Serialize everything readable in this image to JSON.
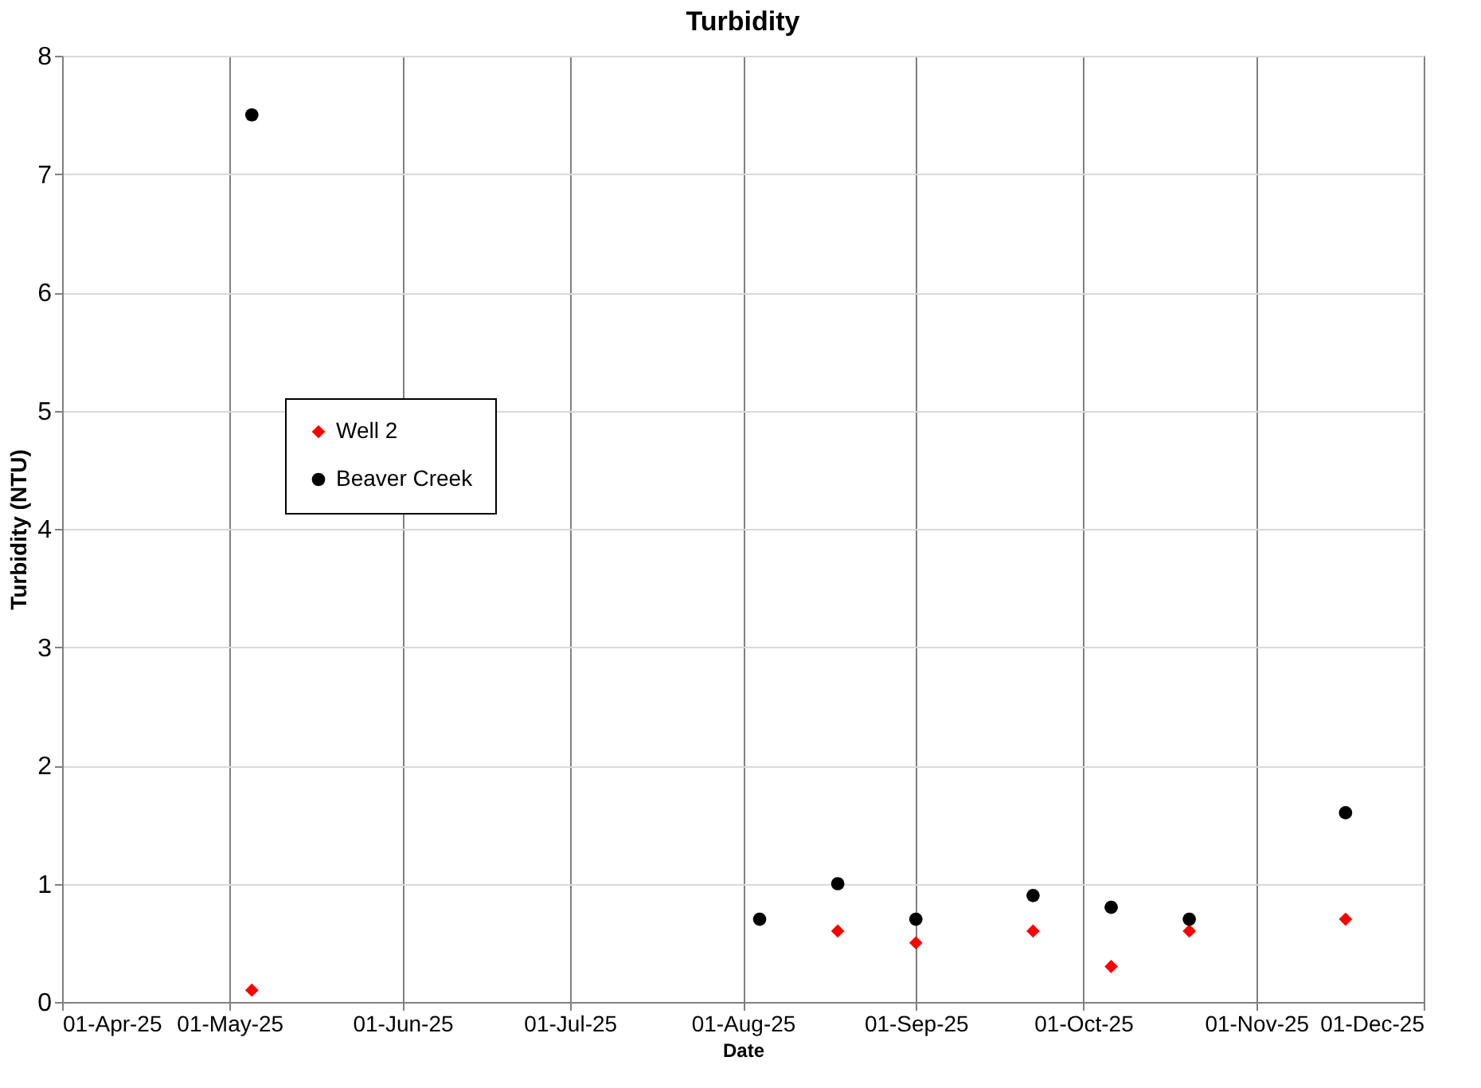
{
  "chart_data": {
    "type": "scatter",
    "title": "Turbidity",
    "xlabel": "Date",
    "ylabel": "Turbidity (NTU)",
    "series": [
      {
        "name": "Well 2",
        "color": "#ff0000",
        "marker": "diamond",
        "x": [
          "2025-05-05",
          "2025-08-18",
          "2025-09-01",
          "2025-09-22",
          "2025-10-06",
          "2025-10-20",
          "2025-11-17"
        ],
        "values": [
          0.1,
          0.6,
          0.5,
          0.6,
          0.3,
          0.6,
          0.7
        ]
      },
      {
        "name": "Beaver Creek",
        "color": "#000000",
        "marker": "circle",
        "x": [
          "2025-05-05",
          "2025-08-04",
          "2025-08-18",
          "2025-09-01",
          "2025-09-22",
          "2025-10-06",
          "2025-10-20",
          "2025-11-17"
        ],
        "values": [
          7.5,
          0.7,
          1.0,
          0.7,
          0.9,
          0.8,
          0.7,
          1.6
        ]
      }
    ],
    "xlim": [
      "2025-04-01",
      "2025-12-01"
    ],
    "xticks": [
      {
        "value": "2025-04-01",
        "label": "01-Apr-25"
      },
      {
        "value": "2025-05-01",
        "label": "01-May-25"
      },
      {
        "value": "2025-06-01",
        "label": "01-Jun-25"
      },
      {
        "value": "2025-07-01",
        "label": "01-Jul-25"
      },
      {
        "value": "2025-08-01",
        "label": "01-Aug-25"
      },
      {
        "value": "2025-09-01",
        "label": "01-Sep-25"
      },
      {
        "value": "2025-10-01",
        "label": "01-Oct-25"
      },
      {
        "value": "2025-11-01",
        "label": "01-Nov-25"
      },
      {
        "value": "2025-12-01",
        "label": "01-Dec-25"
      }
    ],
    "ylim": [
      0,
      8
    ],
    "yticks": [
      0,
      1,
      2,
      3,
      4,
      5,
      6,
      7,
      8
    ],
    "grid": true,
    "legend": "left"
  }
}
